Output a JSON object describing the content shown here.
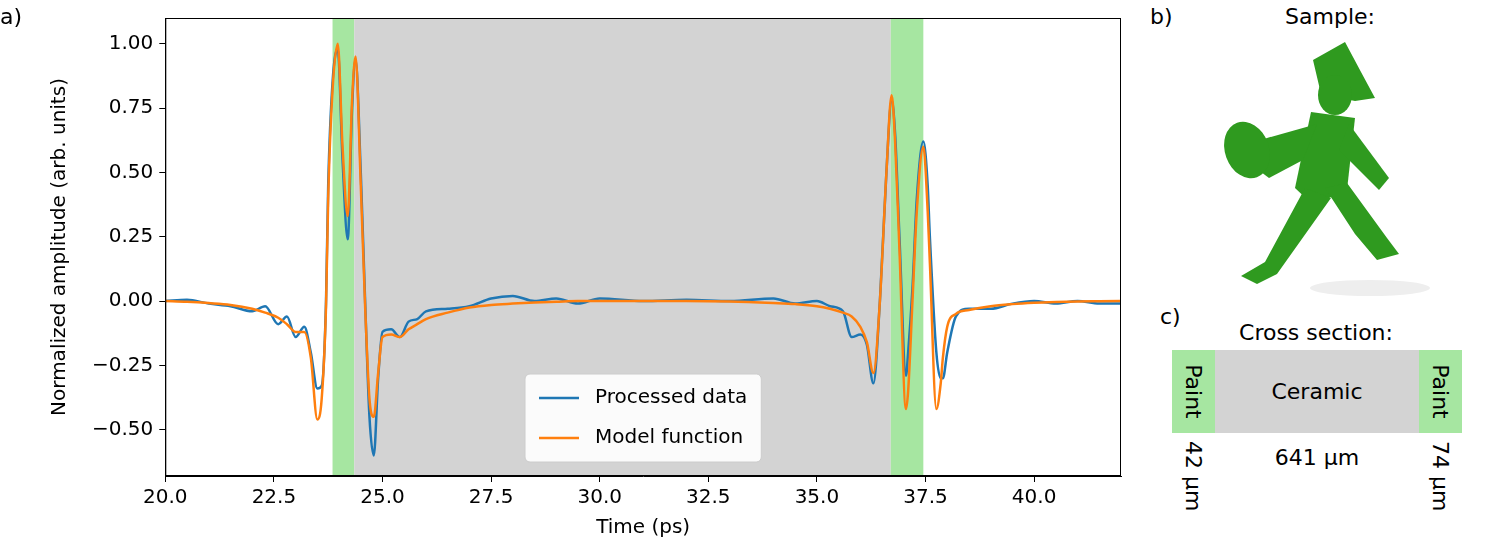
{
  "chart_data": {
    "type": "line",
    "x_label": "Time (ps)",
    "y_label": "Normalized amplitude (arb. units)",
    "x": [
      20,
      20.5,
      21,
      21.5,
      22,
      22.3,
      22.6,
      22.8,
      23.0,
      23.2,
      23.35,
      23.5,
      23.6,
      23.7,
      23.75,
      23.85,
      23.97,
      24.08,
      24.2,
      24.3,
      24.38,
      24.5,
      24.6,
      24.7,
      24.8,
      24.9,
      25.0,
      25.2,
      25.4,
      25.6,
      25.8,
      26.0,
      26.5,
      27.0,
      27.5,
      28.0,
      28.5,
      29.0,
      29.5,
      30.0,
      31,
      32,
      33,
      34,
      34.5,
      35,
      35.3,
      35.6,
      35.8,
      36.0,
      36.15,
      36.3,
      36.45,
      36.6,
      36.72,
      36.8,
      36.9,
      37.05,
      37.1,
      37.2,
      37.3,
      37.45,
      37.55,
      37.6,
      37.75,
      37.85,
      37.9,
      38.0,
      38.2,
      38.5,
      39,
      39.5,
      40,
      40.5,
      41,
      41.5,
      42
    ],
    "series": [
      {
        "name": "Processed data",
        "color": "#1f77b4",
        "values": [
          0,
          0.005,
          -0.01,
          -0.02,
          -0.04,
          -0.02,
          -0.09,
          -0.06,
          -0.14,
          -0.1,
          -0.2,
          -0.34,
          -0.33,
          0.0,
          0.45,
          0.85,
          0.98,
          0.55,
          0.24,
          0.75,
          0.94,
          0.5,
          0.0,
          -0.45,
          -0.6,
          -0.3,
          -0.12,
          -0.11,
          -0.14,
          -0.08,
          -0.07,
          -0.04,
          -0.03,
          -0.02,
          0.01,
          0.02,
          0.0,
          0.01,
          -0.01,
          0.01,
          0.0,
          0.005,
          0.0,
          0.01,
          -0.01,
          0.0,
          -0.02,
          -0.04,
          -0.14,
          -0.13,
          -0.17,
          -0.32,
          0.0,
          0.5,
          0.78,
          0.65,
          0.25,
          -0.29,
          -0.2,
          0.05,
          0.4,
          0.62,
          0.45,
          0.25,
          -0.2,
          -0.3,
          -0.3,
          -0.2,
          -0.06,
          -0.03,
          -0.03,
          -0.01,
          0.0,
          -0.01,
          0.0,
          -0.01,
          -0.01
        ]
      },
      {
        "name": "Model function",
        "color": "#ff7f0e",
        "values": [
          0,
          -0.003,
          -0.008,
          -0.015,
          -0.03,
          -0.045,
          -0.065,
          -0.09,
          -0.12,
          -0.12,
          -0.22,
          -0.46,
          -0.38,
          -0.02,
          0.4,
          0.82,
          1.0,
          0.6,
          0.33,
          0.78,
          0.95,
          0.45,
          -0.02,
          -0.38,
          -0.45,
          -0.28,
          -0.14,
          -0.13,
          -0.14,
          -0.11,
          -0.09,
          -0.07,
          -0.045,
          -0.025,
          -0.015,
          -0.01,
          -0.006,
          -0.003,
          0,
          0,
          0,
          0,
          -0.002,
          -0.008,
          -0.012,
          -0.02,
          -0.03,
          -0.045,
          -0.06,
          -0.1,
          -0.16,
          -0.28,
          0.0,
          0.5,
          0.8,
          0.62,
          0.2,
          -0.42,
          -0.35,
          0.0,
          0.35,
          0.6,
          0.35,
          0.15,
          -0.42,
          -0.32,
          -0.22,
          -0.1,
          -0.05,
          -0.035,
          -0.02,
          -0.012,
          -0.007,
          -0.004,
          -0.002,
          -0.001,
          0
        ]
      }
    ],
    "xlim": [
      20,
      42
    ],
    "ylim": [
      -0.68,
      1.1
    ],
    "xticks": [
      {
        "value": 20,
        "label": "20.0"
      },
      {
        "value": 22.5,
        "label": "22.5"
      },
      {
        "value": 25,
        "label": "25.0"
      },
      {
        "value": 27.5,
        "label": "27.5"
      },
      {
        "value": 30,
        "label": "30.0"
      },
      {
        "value": 32.5,
        "label": "32.5"
      },
      {
        "value": 35,
        "label": "35.0"
      },
      {
        "value": 37.5,
        "label": "37.5"
      },
      {
        "value": 40,
        "label": "40.0"
      }
    ],
    "yticks": [
      {
        "value": -0.5,
        "label": "−0.50"
      },
      {
        "value": -0.25,
        "label": "−0.25"
      },
      {
        "value": 0,
        "label": "0.00"
      },
      {
        "value": 0.25,
        "label": "0.25"
      },
      {
        "value": 0.5,
        "label": "0.50"
      },
      {
        "value": 0.75,
        "label": "0.75"
      },
      {
        "value": 1,
        "label": "1.00"
      }
    ],
    "grid": false,
    "legend": "lower center",
    "regions": [
      {
        "start": 23.85,
        "end": 24.35,
        "color": "#a6e6a1"
      },
      {
        "start": 24.35,
        "end": 36.7,
        "color": "#d3d3d3"
      },
      {
        "start": 36.7,
        "end": 37.45,
        "color": "#a6e6a1"
      }
    ]
  },
  "panels": {
    "a": "a)",
    "b": "b)",
    "c": "c)"
  },
  "sample": {
    "title": "Sample:"
  },
  "cross_section": {
    "title": "Cross section:",
    "layers": [
      {
        "label": "Paint",
        "thickness": 42,
        "unit": "µm",
        "color": "#a6e6a1"
      },
      {
        "label": "Ceramic",
        "thickness": 641,
        "unit": "µm",
        "color": "#d3d3d3"
      },
      {
        "label": "Paint",
        "thickness": 74,
        "unit": "µm",
        "color": "#a6e6a1"
      }
    ]
  }
}
